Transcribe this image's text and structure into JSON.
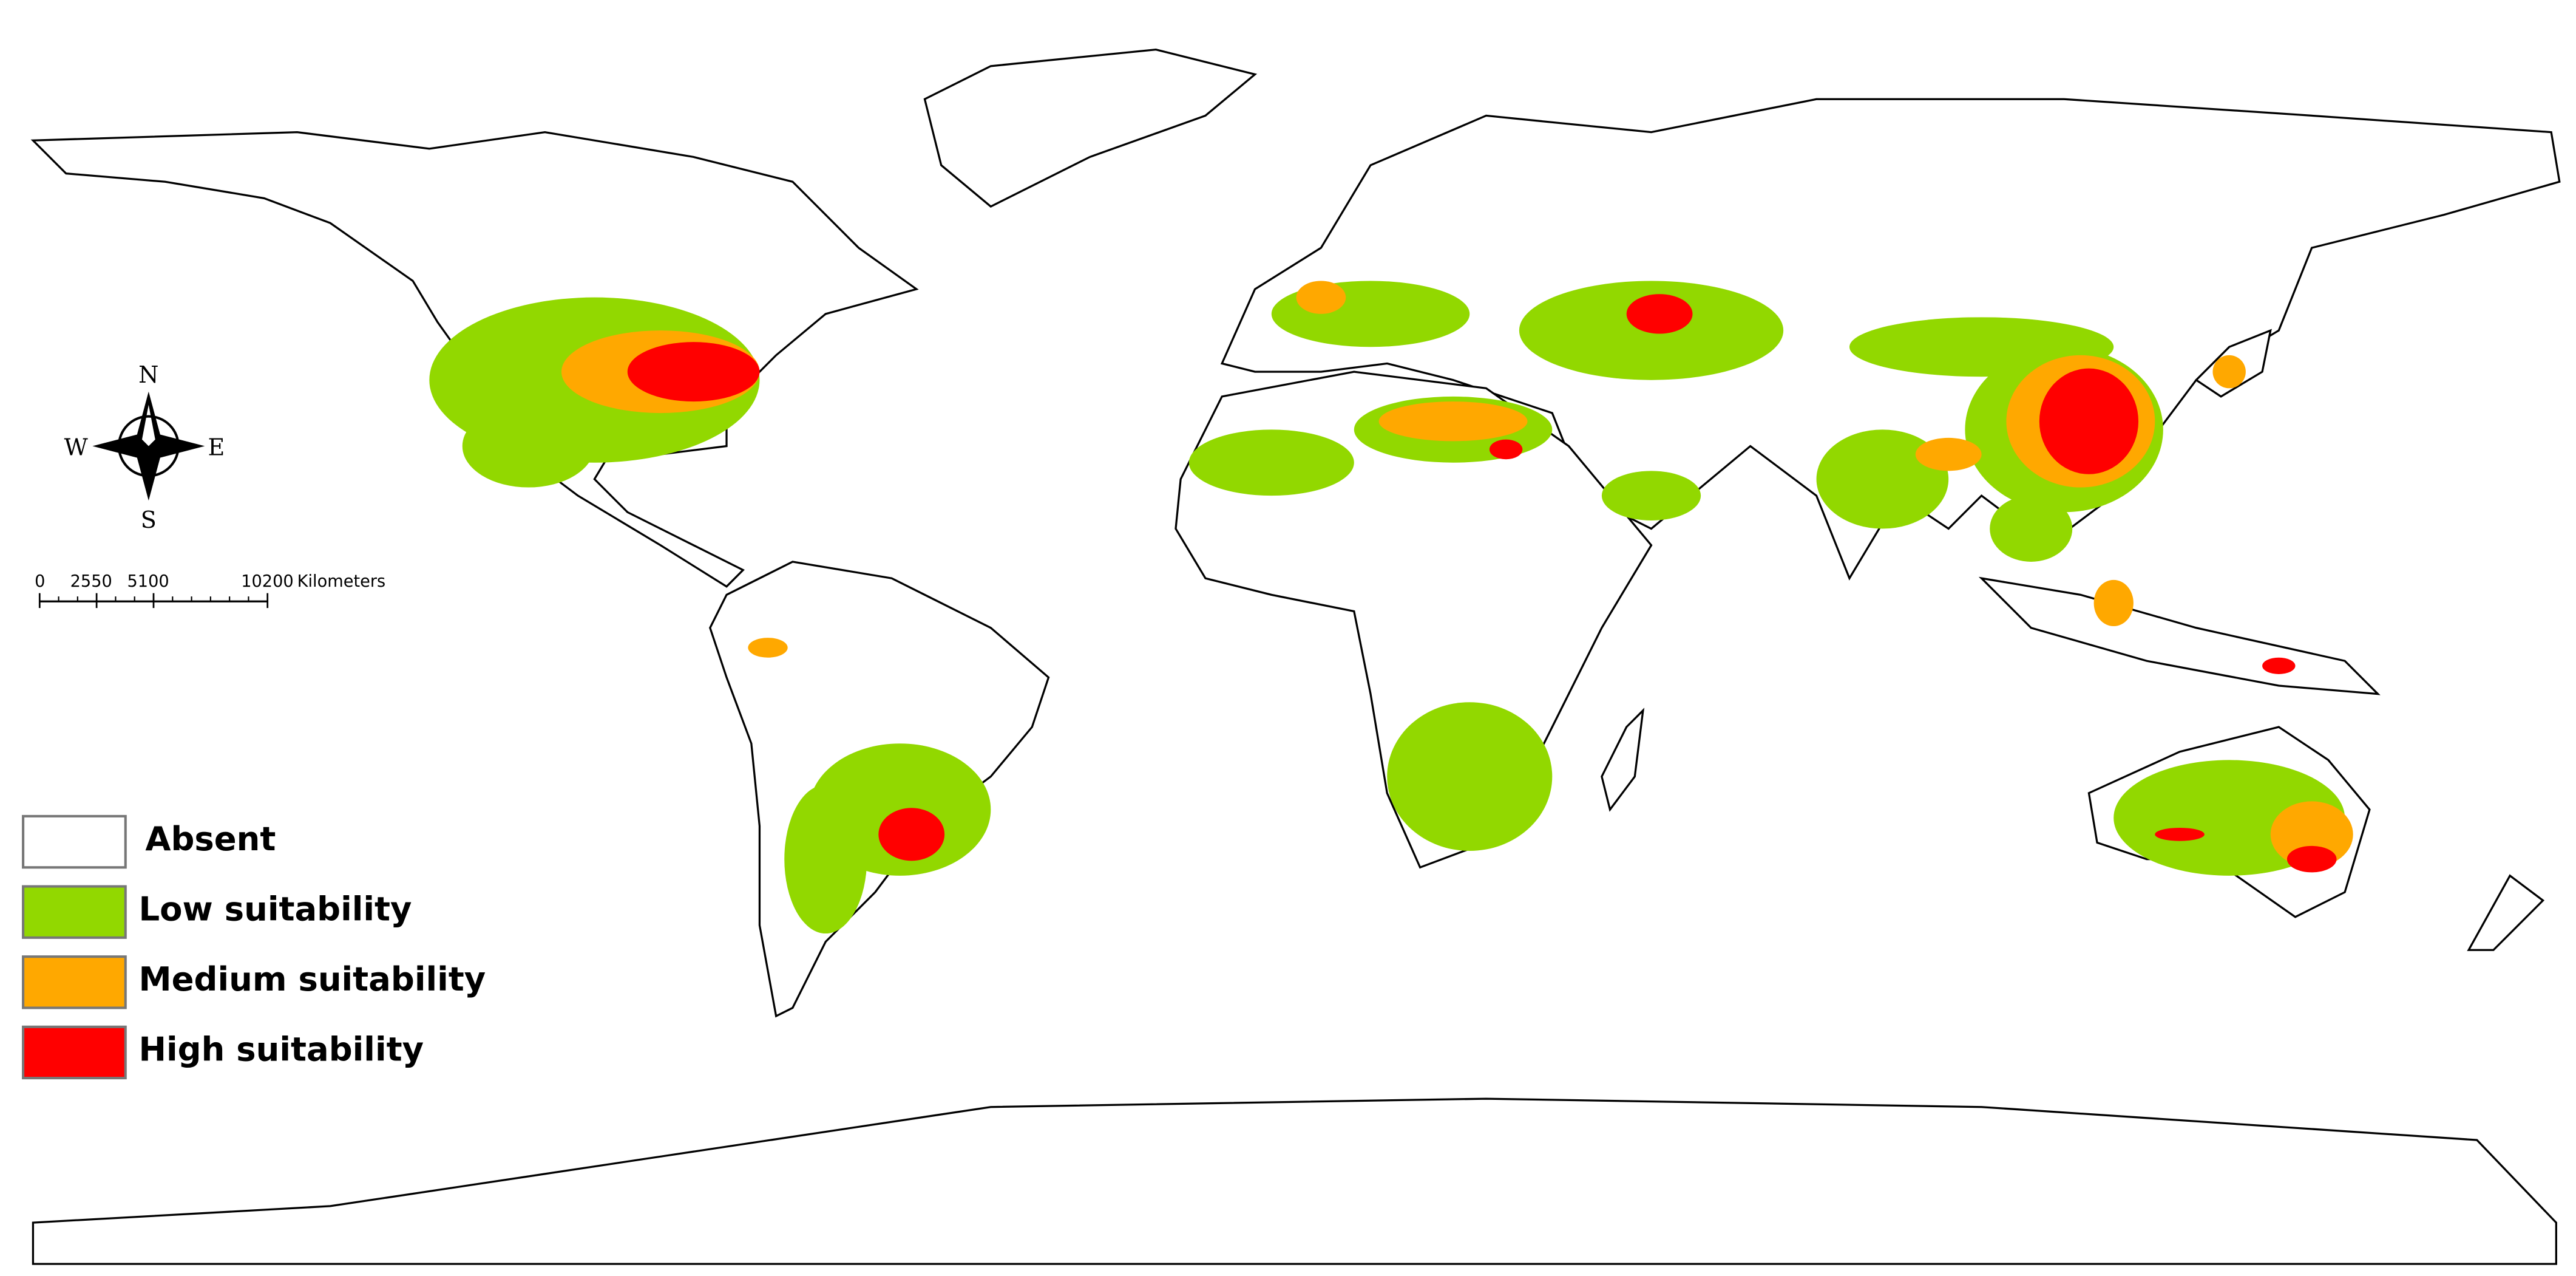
{
  "compass": {
    "north": "N",
    "south": "S",
    "east": "E",
    "west": "W"
  },
  "scale_bar": {
    "ticks": [
      "0",
      "2550",
      "5100",
      "10200"
    ],
    "unit": "Kilometers"
  },
  "legend": [
    {
      "label": "Absent",
      "color": "#ffffff"
    },
    {
      "label": "Low suitability",
      "color": "#92d800"
    },
    {
      "label": "Medium suitability",
      "color": "#ffa800"
    },
    {
      "label": "High suitability",
      "color": "#ff0000"
    }
  ]
}
